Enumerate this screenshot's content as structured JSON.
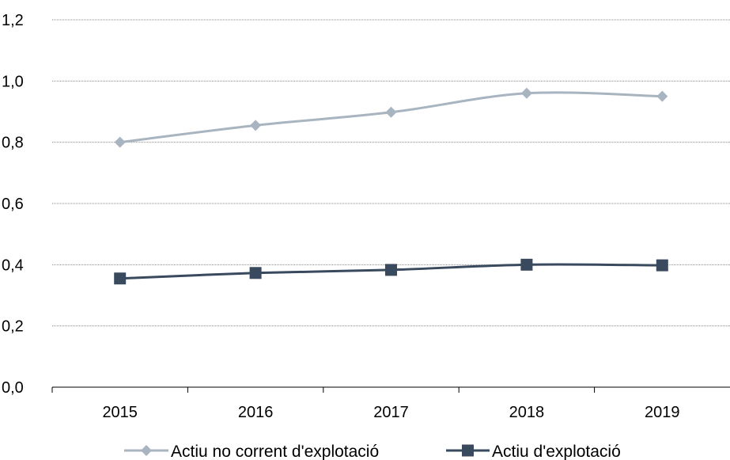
{
  "chart_data": {
    "type": "line",
    "categories": [
      "2015",
      "2016",
      "2017",
      "2018",
      "2019"
    ],
    "series": [
      {
        "name": "Actiu no corrent d'explotació",
        "values": [
          0.8,
          0.855,
          0.898,
          0.96,
          0.95
        ],
        "color": "#A9B4C1",
        "marker": "diamond"
      },
      {
        "name": "Actiu d'explotació",
        "values": [
          0.355,
          0.373,
          0.383,
          0.4,
          0.398
        ],
        "color": "#3A4A5E",
        "marker": "square"
      }
    ],
    "yticks": [
      "0,0",
      "0,2",
      "0,4",
      "0,6",
      "0,8",
      "1,0",
      "1,2"
    ],
    "ylim": [
      0,
      1.2
    ],
    "grid": true,
    "legend_position": "bottom",
    "title": "",
    "xlabel": "",
    "ylabel": ""
  }
}
